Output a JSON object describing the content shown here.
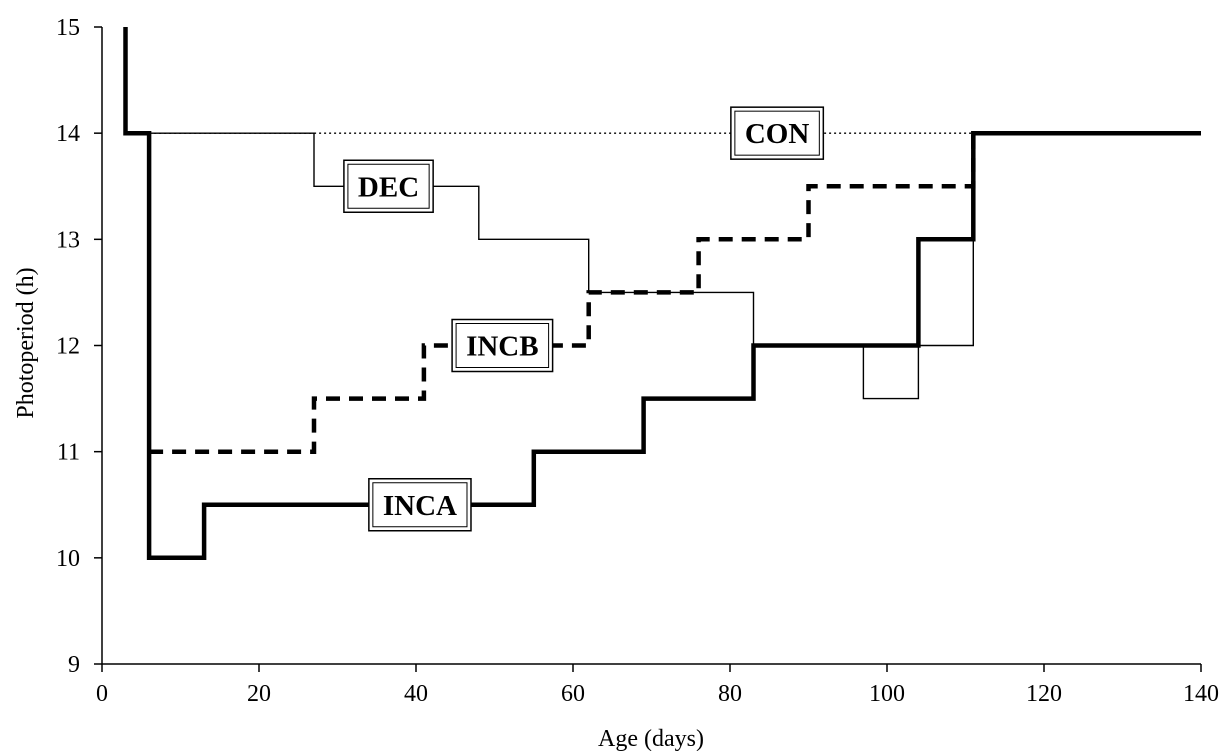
{
  "chart_data": {
    "type": "line",
    "xlabel": "Age (days)",
    "ylabel": "Photoperiod (h)",
    "xlim": [
      0,
      140
    ],
    "ylim": [
      9,
      15
    ],
    "x_ticks": [
      0,
      20,
      40,
      60,
      80,
      100,
      120,
      140
    ],
    "y_ticks": [
      9,
      10,
      11,
      12,
      13,
      14,
      15
    ],
    "grid": false,
    "step": true,
    "series": [
      {
        "name": "CON",
        "style": "dotted-thin",
        "color": "#000000",
        "x": [
          6,
          140
        ],
        "y": [
          14,
          14
        ]
      },
      {
        "name": "DEC",
        "style": "solid-thin",
        "color": "#000000",
        "x": [
          6,
          27,
          27,
          48,
          48,
          62,
          62,
          83,
          83,
          97,
          97,
          104,
          104,
          111,
          111,
          140
        ],
        "y": [
          14,
          14,
          13.5,
          13.5,
          13,
          13,
          12.5,
          12.5,
          12,
          12,
          11.5,
          11.5,
          12,
          12,
          14,
          14
        ]
      },
      {
        "name": "INCB",
        "style": "dashed-thick",
        "color": "#000000",
        "x": [
          6,
          27,
          27,
          41,
          41,
          62,
          62,
          76,
          76,
          90,
          90,
          111,
          111,
          140
        ],
        "y": [
          11,
          11,
          11.5,
          11.5,
          12,
          12,
          12.5,
          12.5,
          13,
          13,
          13.5,
          13.5,
          14,
          14
        ]
      },
      {
        "name": "INCA",
        "style": "solid-thick",
        "color": "#000000",
        "x": [
          3,
          3,
          6,
          6,
          13,
          13,
          55,
          55,
          69,
          69,
          83,
          83,
          104,
          104,
          111,
          111,
          140
        ],
        "y": [
          15,
          14,
          14,
          10,
          10,
          10.5,
          10.5,
          11,
          11,
          11.5,
          11.5,
          12,
          12,
          13,
          13,
          14,
          14
        ]
      }
    ],
    "annotations": [
      {
        "text": "CON",
        "x": 86,
        "y": 14
      },
      {
        "text": "DEC",
        "x": 36.5,
        "y": 13.5
      },
      {
        "text": "INCB",
        "x": 51,
        "y": 12
      },
      {
        "text": "INCA",
        "x": 40.5,
        "y": 10.5
      }
    ]
  }
}
